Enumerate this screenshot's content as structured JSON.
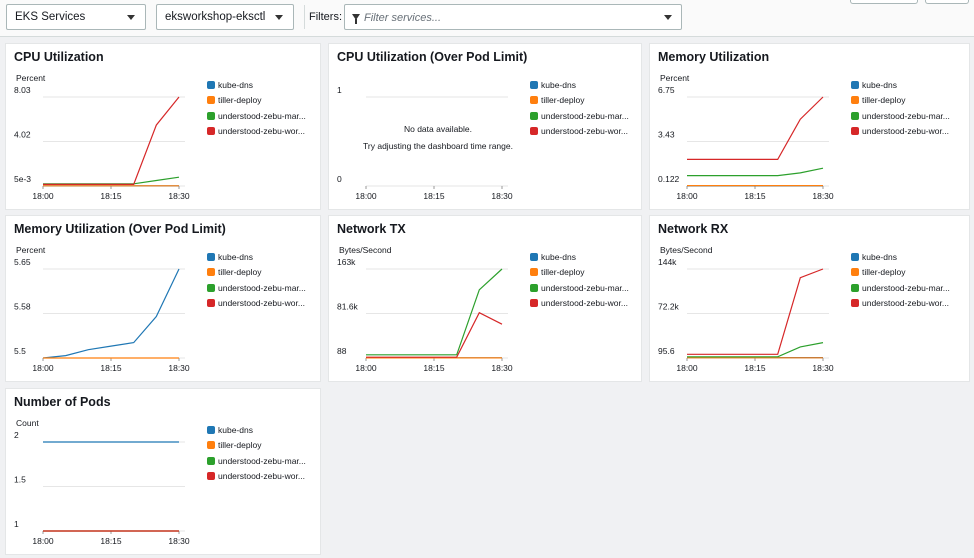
{
  "toolbar": {
    "service_select": "EKS Services",
    "cluster_select": "eksworkshop-eksctl",
    "filters_label": "Filters:",
    "filter_placeholder": "Filter services..."
  },
  "legend": [
    {
      "name": "kube-dns",
      "color": "#1f77b4"
    },
    {
      "name": "tiller-deploy",
      "color": "#ff7f0e"
    },
    {
      "name": "understood-zebu-mar...",
      "color": "#2ca02c"
    },
    {
      "name": "understood-zebu-wor...",
      "color": "#d62728"
    }
  ],
  "panels": [
    {
      "title": "CPU Utilization",
      "unit": "Percent",
      "chart_data": {
        "type": "line",
        "x": [
          "18:00",
          "18:05",
          "18:10",
          "18:15",
          "18:20",
          "18:25",
          "18:30"
        ],
        "xticks": [
          "18:00",
          "18:15",
          "18:30"
        ],
        "yticks": [
          "8.03",
          "4.02",
          "5e-3"
        ],
        "ylim": [
          0.005,
          8.03
        ],
        "series": [
          {
            "name": "kube-dns",
            "values": [
              0.01,
              0.01,
              0.01,
              0.01,
              0.01,
              0.01,
              0.01
            ]
          },
          {
            "name": "tiller-deploy",
            "values": [
              0.02,
              0.02,
              0.02,
              0.02,
              0.02,
              0.02,
              0.02
            ]
          },
          {
            "name": "understood-zebu-mar...",
            "values": [
              0.2,
              0.2,
              0.2,
              0.2,
              0.2,
              0.5,
              0.8
            ]
          },
          {
            "name": "understood-zebu-wor...",
            "values": [
              0.15,
              0.15,
              0.15,
              0.15,
              0.15,
              5.5,
              8.03
            ]
          }
        ]
      }
    },
    {
      "title": "CPU Utilization (Over Pod Limit)",
      "unit": "",
      "nodata": [
        "No data available.",
        "Try adjusting the dashboard time range."
      ],
      "chart_data": {
        "type": "line",
        "x": [
          "18:00",
          "18:05",
          "18:10",
          "18:15",
          "18:20",
          "18:25",
          "18:30"
        ],
        "xticks": [
          "18:00",
          "18:15",
          "18:30"
        ],
        "yticks": [
          "1",
          "0"
        ],
        "ylim": [
          0,
          1
        ],
        "series": []
      }
    },
    {
      "title": "Memory Utilization",
      "unit": "Percent",
      "chart_data": {
        "type": "line",
        "x": [
          "18:00",
          "18:05",
          "18:10",
          "18:15",
          "18:20",
          "18:25",
          "18:30"
        ],
        "xticks": [
          "18:00",
          "18:15",
          "18:30"
        ],
        "yticks": [
          "6.75",
          "3.43",
          "0.122"
        ],
        "ylim": [
          0.122,
          6.75
        ],
        "series": [
          {
            "name": "kube-dns",
            "values": [
              0.13,
              0.13,
              0.13,
              0.13,
              0.13,
              0.13,
              0.13
            ]
          },
          {
            "name": "tiller-deploy",
            "values": [
              0.15,
              0.15,
              0.15,
              0.15,
              0.15,
              0.15,
              0.15
            ]
          },
          {
            "name": "understood-zebu-mar...",
            "values": [
              0.9,
              0.9,
              0.9,
              0.9,
              0.9,
              1.1,
              1.45
            ]
          },
          {
            "name": "understood-zebu-wor...",
            "values": [
              2.1,
              2.1,
              2.1,
              2.1,
              2.1,
              5.1,
              6.75
            ]
          }
        ]
      }
    },
    {
      "title": "Memory Utilization (Over Pod Limit)",
      "unit": "Percent",
      "chart_data": {
        "type": "line",
        "x": [
          "18:00",
          "18:05",
          "18:10",
          "18:15",
          "18:20",
          "18:25",
          "18:30"
        ],
        "xticks": [
          "18:00",
          "18:15",
          "18:30"
        ],
        "yticks": [
          "5.65",
          "5.58",
          "5.5"
        ],
        "ylim": [
          5.5,
          5.65
        ],
        "series": [
          {
            "name": "kube-dns",
            "values": [
              5.5,
              5.504,
              5.514,
              5.52,
              5.526,
              5.57,
              5.65
            ]
          },
          {
            "name": "tiller-deploy",
            "values": [
              5.5,
              5.5,
              5.5,
              5.5,
              5.5,
              5.5,
              5.5
            ]
          }
        ]
      }
    },
    {
      "title": "Network TX",
      "unit": "Bytes/Second",
      "chart_data": {
        "type": "line",
        "x": [
          "18:00",
          "18:05",
          "18:10",
          "18:15",
          "18:20",
          "18:25",
          "18:30"
        ],
        "xticks": [
          "18:00",
          "18:15",
          "18:30"
        ],
        "yticks": [
          "163k",
          "81.6k",
          "88"
        ],
        "ylim": [
          88,
          163000
        ],
        "series": [
          {
            "name": "kube-dns",
            "values": [
              500,
              500,
              500,
              500,
              500,
              500,
              500
            ]
          },
          {
            "name": "tiller-deploy",
            "values": [
              300,
              300,
              300,
              300,
              300,
              300,
              300
            ]
          },
          {
            "name": "understood-zebu-mar...",
            "values": [
              6000,
              6000,
              6000,
              6000,
              6000,
              125000,
              163000
            ]
          },
          {
            "name": "understood-zebu-wor...",
            "values": [
              1500,
              1500,
              1500,
              1500,
              1500,
              83000,
              62000
            ]
          }
        ]
      }
    },
    {
      "title": "Network RX",
      "unit": "Bytes/Second",
      "chart_data": {
        "type": "line",
        "x": [
          "18:00",
          "18:05",
          "18:10",
          "18:15",
          "18:20",
          "18:25",
          "18:30"
        ],
        "xticks": [
          "18:00",
          "18:15",
          "18:30"
        ],
        "yticks": [
          "144k",
          "72.2k",
          "95.6"
        ],
        "ylim": [
          95.6,
          144000
        ],
        "series": [
          {
            "name": "kube-dns",
            "values": [
              800,
              800,
              800,
              800,
              800,
              800,
              800
            ]
          },
          {
            "name": "tiller-deploy",
            "values": [
              400,
              400,
              400,
              400,
              400,
              400,
              400
            ]
          },
          {
            "name": "understood-zebu-mar...",
            "values": [
              2000,
              2000,
              2000,
              2000,
              2000,
              18000,
              25000
            ]
          },
          {
            "name": "understood-zebu-wor...",
            "values": [
              6000,
              6000,
              6000,
              6000,
              6000,
              130000,
              144000
            ]
          }
        ]
      }
    },
    {
      "title": "Number of Pods",
      "unit": "Count",
      "chart_data": {
        "type": "line",
        "x": [
          "18:00",
          "18:05",
          "18:10",
          "18:15",
          "18:20",
          "18:25",
          "18:30"
        ],
        "xticks": [
          "18:00",
          "18:15",
          "18:30"
        ],
        "yticks": [
          "2",
          "1.5",
          "1"
        ],
        "ylim": [
          1,
          2
        ],
        "series": [
          {
            "name": "kube-dns",
            "values": [
              2,
              2,
              2,
              2,
              2,
              2,
              2
            ]
          },
          {
            "name": "tiller-deploy",
            "values": [
              1,
              1,
              1,
              1,
              1,
              1,
              1
            ]
          },
          {
            "name": "understood-zebu-mar...",
            "values": [
              1,
              1,
              1,
              1,
              1,
              1,
              1
            ]
          },
          {
            "name": "understood-zebu-wor...",
            "values": [
              1,
              1,
              1,
              1,
              1,
              1,
              1
            ]
          }
        ]
      }
    }
  ]
}
